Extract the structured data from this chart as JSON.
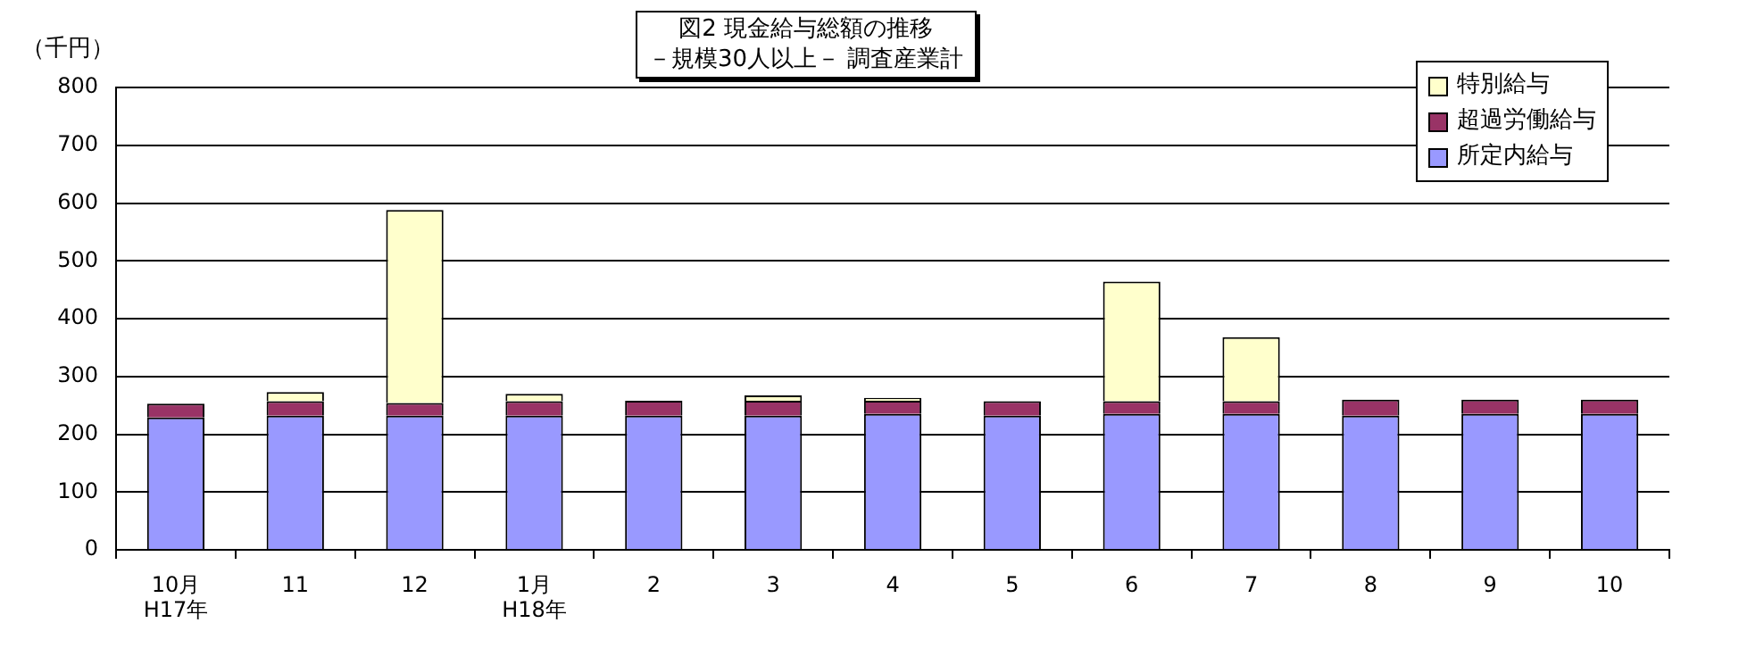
{
  "chart_data": {
    "type": "bar",
    "title": "図2  現金給与総額の推移",
    "subtitle": "－規模30人以上－  調査産業計",
    "ylabel": "（千円）",
    "categories": [
      "10月\nH17年",
      "11",
      "12",
      "1月\nH18年",
      "2",
      "3",
      "4",
      "5",
      "6",
      "7",
      "8",
      "9",
      "10"
    ],
    "stacked": true,
    "ylim": [
      0,
      800
    ],
    "yticks": [
      0,
      100,
      200,
      300,
      400,
      500,
      600,
      700,
      800
    ],
    "grid": "y",
    "legend": "top right",
    "series": [
      {
        "name": "所定内給与",
        "color": "#9999ff",
        "values": [
          229,
          232,
          232,
          232,
          232,
          232,
          235,
          232,
          235,
          235,
          232,
          235,
          235
        ]
      },
      {
        "name": "超過労働給与",
        "color": "#993366",
        "values": [
          24,
          25,
          22,
          25,
          26,
          26,
          23,
          25,
          22,
          22,
          28,
          25,
          25
        ]
      },
      {
        "name": "特別給与",
        "color": "#ffffcc",
        "values": [
          null,
          16,
          334,
          13,
          0,
          9,
          5,
          null,
          207,
          111,
          0,
          0,
          0
        ]
      }
    ]
  }
}
